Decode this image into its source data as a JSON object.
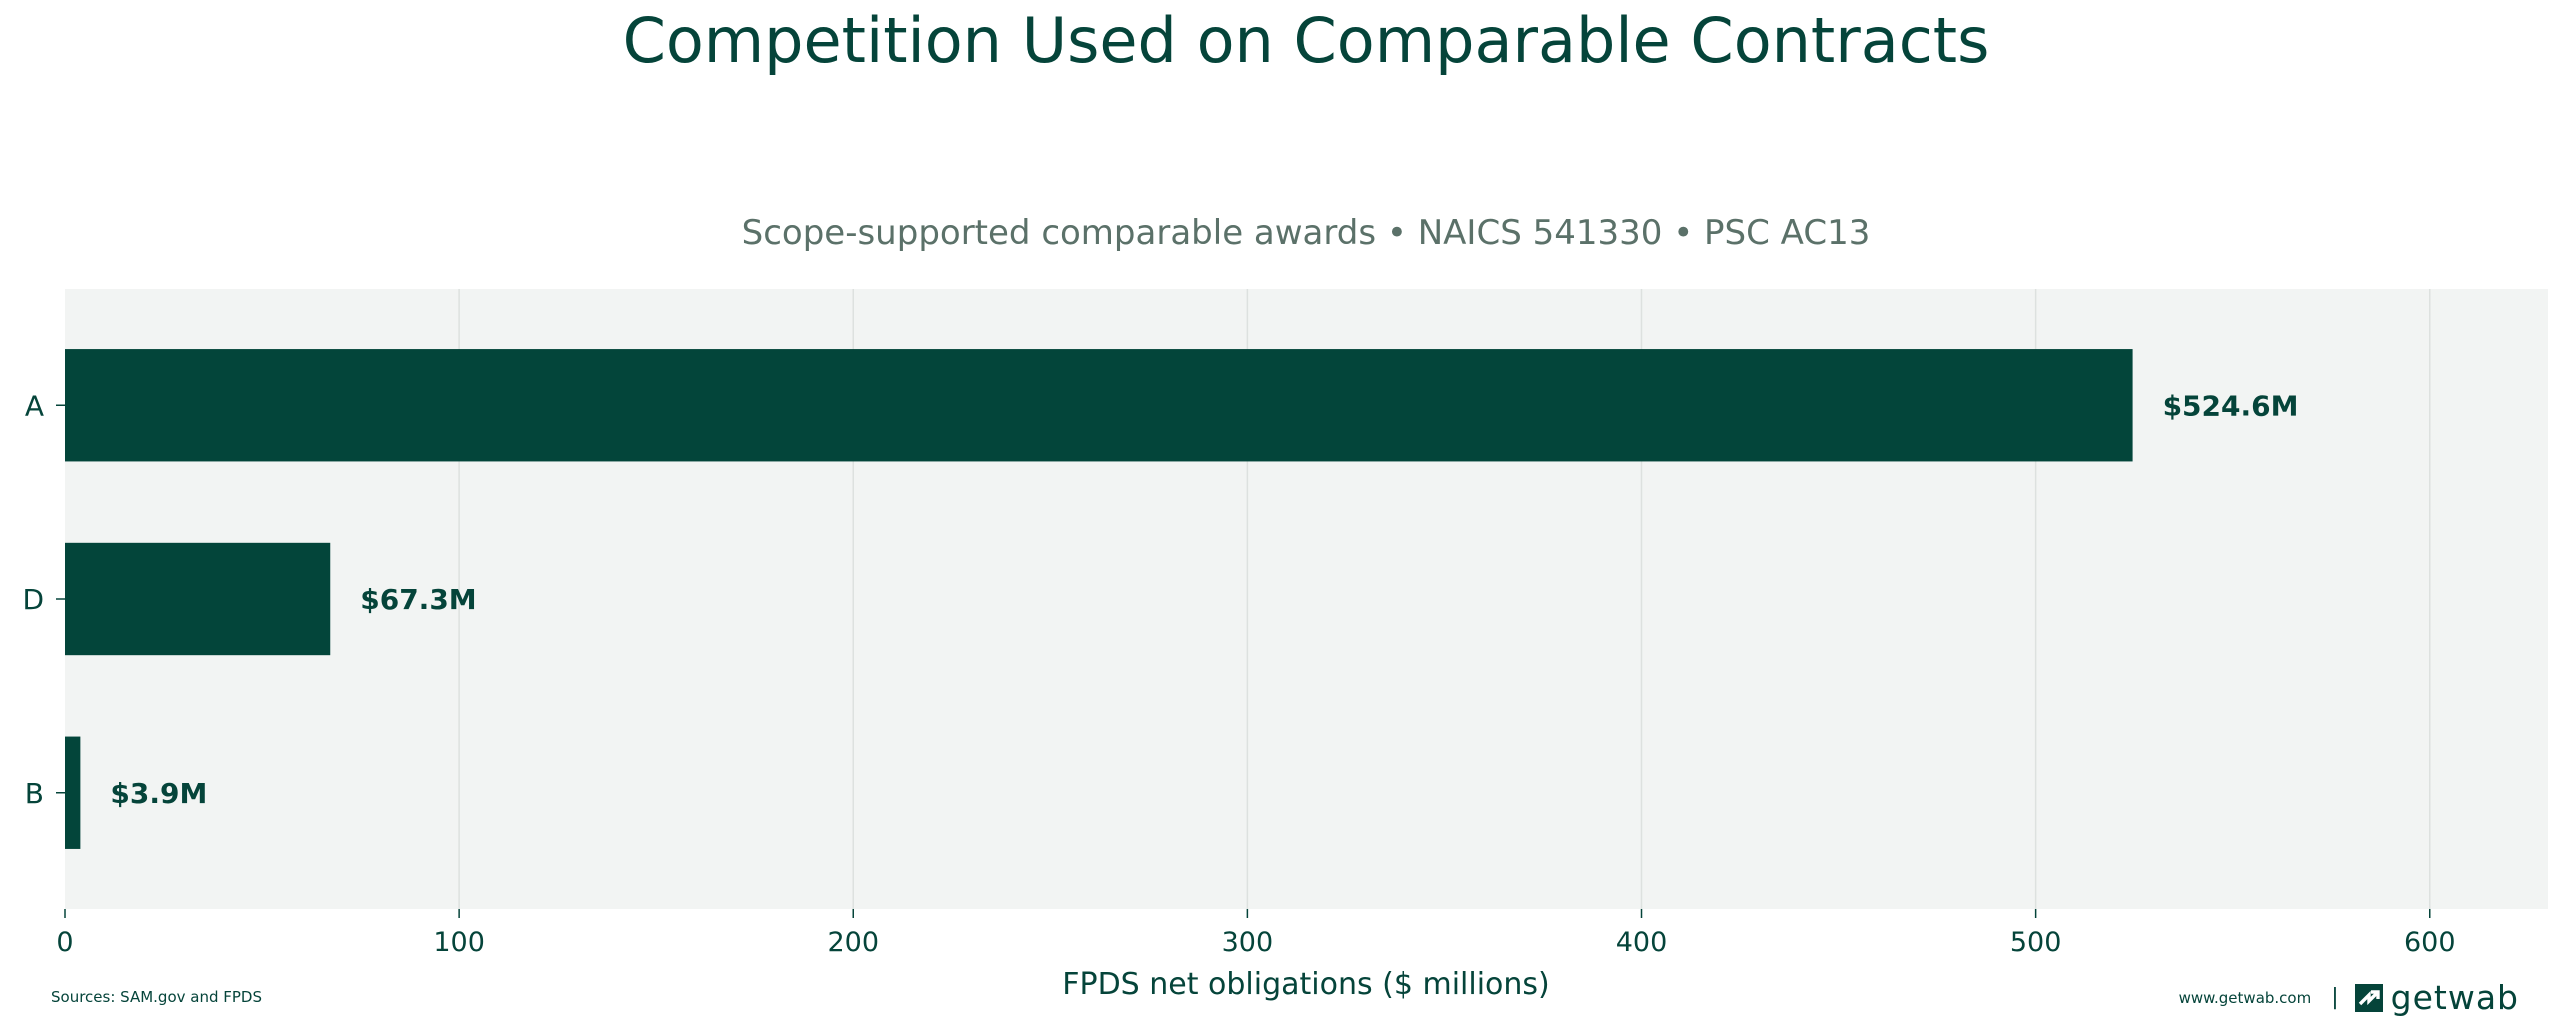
{
  "colors": {
    "bar": "#03453A",
    "plot_bg": "#F2F4F3",
    "grid": "#DDE1DF",
    "text": "#05443A",
    "subtitle": "#5B7169"
  },
  "chart_data": {
    "type": "bar",
    "orientation": "horizontal",
    "title": "Competition Used on Comparable Contracts",
    "subtitle": "Scope-supported comparable awards • NAICS 541330 • PSC AC13",
    "categories": [
      "A",
      "D",
      "B"
    ],
    "values": [
      524.6,
      67.3,
      3.9
    ],
    "data_labels": [
      "$524.6M",
      "$67.3M",
      "$3.9M"
    ],
    "xlabel": "FPDS net obligations ($ millions)",
    "ylabel": "",
    "xlim": [
      0,
      630
    ],
    "xticks": [
      0,
      100,
      200,
      300,
      400,
      500,
      600
    ],
    "grid": "vertical"
  },
  "footer": {
    "source": "Sources: SAM.gov and FPDS",
    "url": "www.getwab.com",
    "separator": "|",
    "brand": "getwab",
    "brand_icon": "getwab-logo-icon"
  }
}
